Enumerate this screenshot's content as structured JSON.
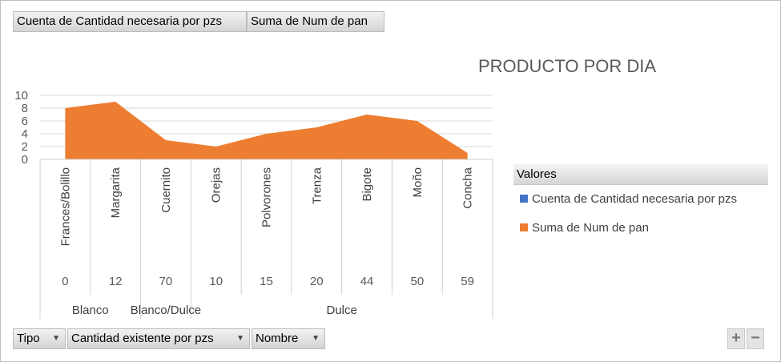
{
  "top_fields": {
    "count_field": "Cuenta de Cantidad necesaria por pzs",
    "sum_field": "Suma de Num de pan"
  },
  "bottom_fields": {
    "tipo": "Tipo",
    "cantidad": "Cantidad existente por pzs",
    "nombre": "Nombre"
  },
  "legend": {
    "header": "Valores",
    "items": [
      {
        "label": "Cuenta de Cantidad necesaria por pzs",
        "color": "#4472c4"
      },
      {
        "label": "Suma de Num de pan",
        "color": "#ed7d31"
      }
    ]
  },
  "zoom": {
    "plus": "+",
    "minus": "−"
  },
  "chart_data": {
    "type": "area",
    "title": "PRODUCTO POR DIA",
    "xlabel": "",
    "ylabel": "",
    "ylim": [
      0,
      10
    ],
    "yticks": [
      0,
      2,
      4,
      6,
      8,
      10
    ],
    "grid": true,
    "legend_position": "right",
    "categories": [
      "Frances/Bolillo",
      "Margarita",
      "Cuernito",
      "Orejas",
      "Polvorones",
      "Trenza",
      "Bigote",
      "Moño",
      "Concha"
    ],
    "level2": [
      "0",
      "12",
      "70",
      "10",
      "15",
      "20",
      "44",
      "50",
      "59"
    ],
    "level3": [
      {
        "label": "Blanco",
        "span": 2
      },
      {
        "label": "Blanco/Dulce",
        "span": 1
      },
      {
        "label": "Dulce",
        "span": 6
      }
    ],
    "series": [
      {
        "name": "Suma de Num de pan",
        "color": "#ed7d31",
        "values": [
          8,
          9,
          3,
          2,
          4,
          5,
          7,
          6,
          1
        ]
      }
    ]
  }
}
